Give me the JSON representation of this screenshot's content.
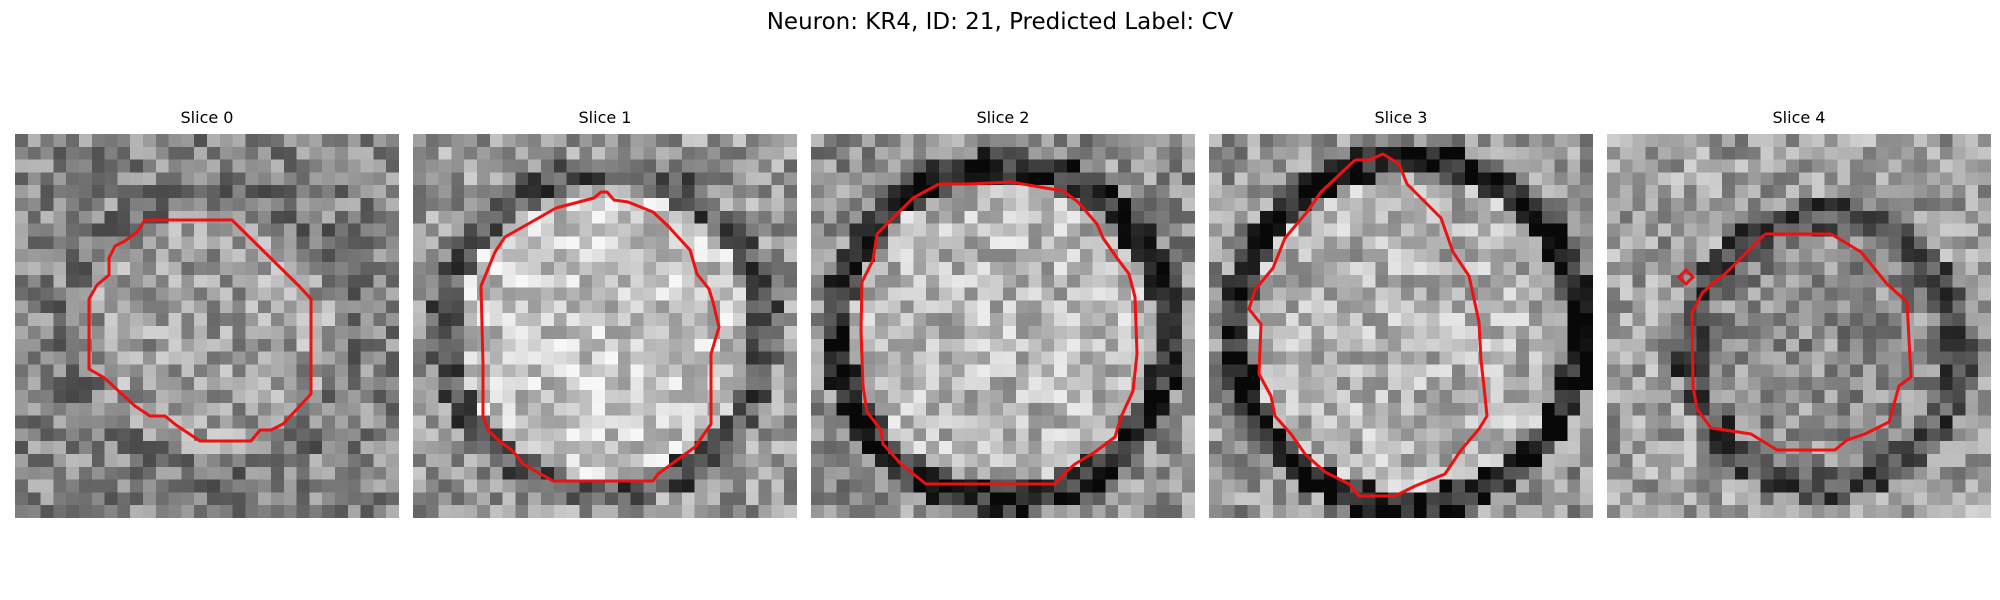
{
  "figure": {
    "title": "Neuron: KR4, ID: 21, Predicted Label: CV"
  },
  "colors": {
    "contour": "#ee1111",
    "background": "#ffffff"
  },
  "panels": [
    {
      "title": "Slice 0"
    },
    {
      "title": "Slice 1"
    },
    {
      "title": "Slice 2"
    },
    {
      "title": "Slice 3"
    },
    {
      "title": "Slice 4"
    }
  ]
}
